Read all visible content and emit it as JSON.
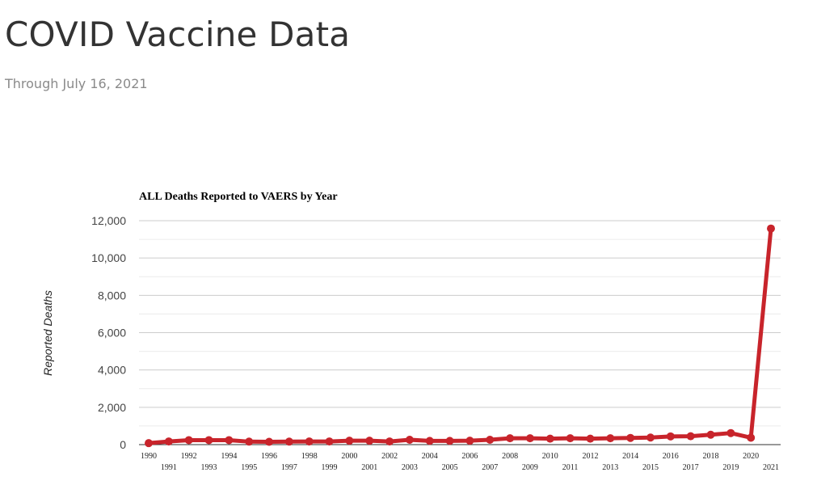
{
  "page": {
    "title": "COVID Vaccine Data",
    "subtitle": "Through July 16, 2021"
  },
  "colors": {
    "series": "#c8242b",
    "grid_major": "#cccccc",
    "grid_minor": "#ececec",
    "axis": "#333333"
  },
  "chart_data": {
    "type": "line",
    "title": "ALL Deaths Reported to VAERS by Year",
    "xlabel": "",
    "ylabel": "Reported Deaths",
    "ylim": [
      0,
      12000
    ],
    "yticks": [
      0,
      2000,
      4000,
      6000,
      8000,
      10000,
      12000
    ],
    "ytick_labels": [
      "0",
      "2,000",
      "4,000",
      "6,000",
      "8,000",
      "10,000",
      "12,000"
    ],
    "grid": true,
    "legend": "none",
    "categories": [
      "1990",
      "1991",
      "1992",
      "1993",
      "1994",
      "1995",
      "1996",
      "1997",
      "1998",
      "1999",
      "2000",
      "2001",
      "2002",
      "2003",
      "2004",
      "2005",
      "2006",
      "2007",
      "2008",
      "2009",
      "2010",
      "2011",
      "2012",
      "2013",
      "2014",
      "2015",
      "2016",
      "2017",
      "2018",
      "2019",
      "2020",
      "2021"
    ],
    "series": [
      {
        "values": [
          80,
          170,
          240,
          240,
          240,
          160,
          150,
          160,
          170,
          170,
          210,
          210,
          170,
          260,
          200,
          200,
          210,
          260,
          340,
          340,
          320,
          340,
          320,
          340,
          360,
          380,
          440,
          450,
          530,
          620,
          370,
          11580
        ]
      }
    ]
  }
}
